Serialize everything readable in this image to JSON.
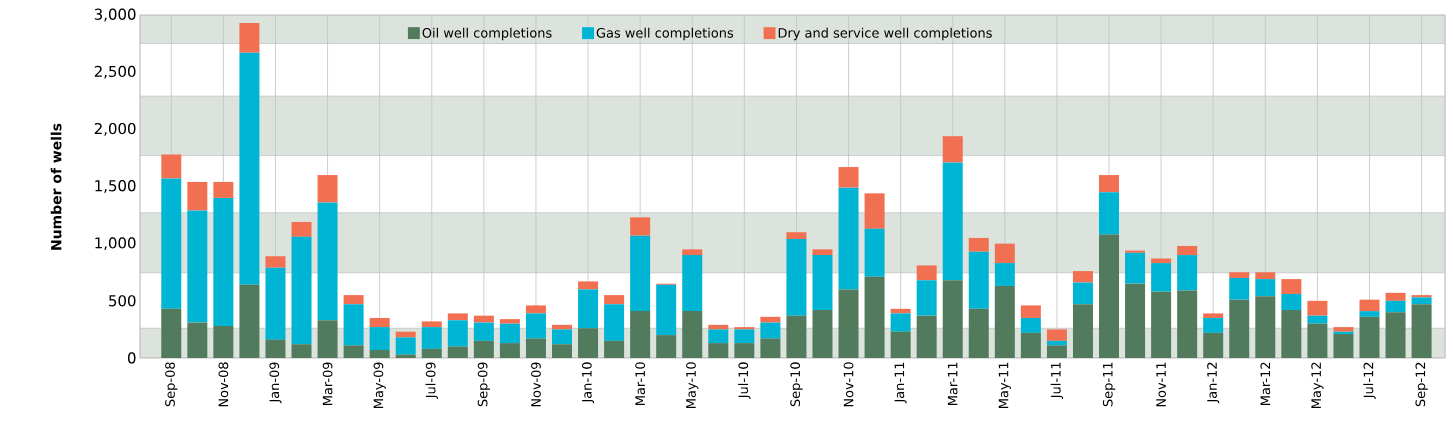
{
  "chart_data": {
    "type": "bar",
    "stacked": true,
    "ylabel": "Number of wells",
    "categories": [
      "Sep-08",
      null,
      "Nov-08",
      null,
      "Jan-09",
      null,
      "Mar-09",
      null,
      "May-09",
      null,
      "Jul-09",
      null,
      "Sep-09",
      null,
      "Nov-09",
      null,
      "Jan-10",
      null,
      "Mar-10",
      null,
      "May-10",
      null,
      "Jul-10",
      null,
      "Sep-10",
      null,
      "Nov-10",
      null,
      "Jan-11",
      null,
      "Mar-11",
      null,
      "May-11",
      null,
      "Jul-11",
      null,
      "Sep-11",
      null,
      "Nov-11",
      null,
      "Jan-12",
      null,
      "Mar-12",
      null,
      "May-12",
      null,
      "Jul-12",
      null,
      "Sep-12"
    ],
    "series": [
      {
        "name": "Oil well completions",
        "color": "#527a5c",
        "values": [
          430,
          310,
          280,
          640,
          160,
          120,
          330,
          110,
          70,
          30,
          80,
          100,
          150,
          130,
          170,
          120,
          260,
          150,
          410,
          200,
          410,
          130,
          130,
          170,
          370,
          420,
          600,
          710,
          230,
          370,
          680,
          430,
          630,
          220,
          110,
          470,
          1080,
          650,
          580,
          590,
          220,
          510,
          540,
          420,
          300,
          210,
          360,
          400,
          470
        ]
      },
      {
        "name": "Gas well completions",
        "color": "#00b5d4",
        "values": [
          1140,
          980,
          1120,
          2030,
          630,
          940,
          1030,
          360,
          200,
          150,
          190,
          230,
          160,
          170,
          220,
          130,
          340,
          320,
          660,
          440,
          490,
          120,
          120,
          140,
          670,
          480,
          890,
          420,
          160,
          310,
          1030,
          500,
          200,
          130,
          40,
          190,
          370,
          270,
          250,
          310,
          130,
          190,
          150,
          140,
          70,
          20,
          50,
          100,
          60
        ]
      },
      {
        "name": "Dry and service well completions",
        "color": "#f27052",
        "values": [
          210,
          250,
          140,
          260,
          100,
          130,
          240,
          80,
          80,
          50,
          50,
          60,
          60,
          40,
          70,
          40,
          70,
          80,
          160,
          10,
          50,
          40,
          20,
          50,
          60,
          50,
          180,
          310,
          40,
          130,
          230,
          120,
          170,
          110,
          100,
          100,
          150,
          20,
          40,
          80,
          40,
          50,
          60,
          130,
          130,
          40,
          100,
          70,
          20
        ]
      }
    ],
    "ylim": [
      0,
      3000
    ],
    "yticks": [
      0,
      {
        "value": 500,
        "label": "500"
      },
      {
        "value": 1000,
        "label": "1,000"
      },
      {
        "value": 1500,
        "label": "1,500"
      },
      {
        "value": 2000,
        "label": "2,000"
      },
      {
        "value": 2500,
        "label": "2,500"
      },
      {
        "value": 3000,
        "label": "3,000"
      }
    ],
    "bands": [
      {
        "axis": "y",
        "from": 0,
        "to": 260,
        "color": "#dce3dd"
      },
      {
        "axis": "y",
        "from": 745,
        "to": 1270,
        "color": "#dce3dd"
      },
      {
        "axis": "y",
        "from": 1770,
        "to": 2290,
        "color": "#dce3dd"
      },
      {
        "axis": "y",
        "from": 2750,
        "to": 3000,
        "color": "#dce3dd"
      }
    ],
    "grid": "x",
    "legend": "top"
  }
}
